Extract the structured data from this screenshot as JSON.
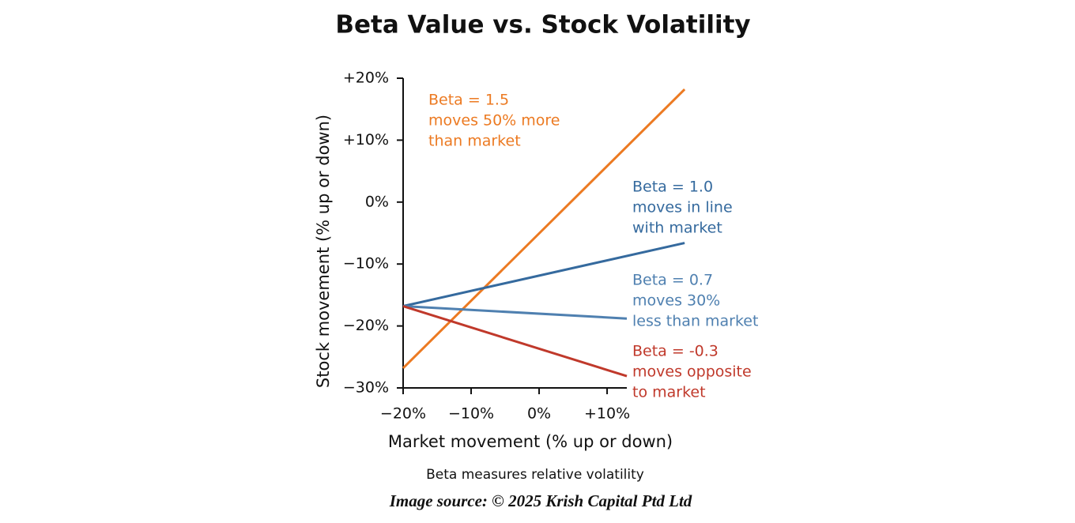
{
  "chart_data": {
    "type": "line",
    "title": "Beta Value vs. Stock Volatility",
    "subtitle": "Beta measures relative volatility",
    "source": "Image source: © 2025 Krish Capital Ptd Ltd",
    "x_label": "Market movement (% up or down)",
    "y_label": "Stock movement (% up or down)",
    "xlim": [
      -20,
      12.9
    ],
    "ylim": [
      -30,
      20
    ],
    "xticks": [
      {
        "value": -20,
        "label": "−20%"
      },
      {
        "value": -10,
        "label": "−10%"
      },
      {
        "value": 0,
        "label": "0%"
      },
      {
        "value": 10,
        "label": "+10%"
      }
    ],
    "yticks": [
      {
        "value": 20,
        "label": "+20%"
      },
      {
        "value": 10,
        "label": "+10%"
      },
      {
        "value": 0,
        "label": "0%"
      },
      {
        "value": -10,
        "label": "−10%"
      },
      {
        "value": -20,
        "label": "−20%"
      },
      {
        "value": -30,
        "label": "−30%"
      }
    ],
    "series": [
      {
        "name": "Beta = 1.5",
        "description": [
          "moves 50% more",
          "than market"
        ],
        "color": "#ec7a22",
        "x": [
          -20,
          21.4
        ],
        "values": [
          -26.8,
          18.2
        ]
      },
      {
        "name": "Beta = 1.0",
        "description": [
          "moves in line",
          "with market"
        ],
        "color": "#356a9e",
        "x": [
          -20,
          21.4
        ],
        "values": [
          -16.8,
          -6.6
        ]
      },
      {
        "name": "Beta = 0.7",
        "description": [
          "moves 30%",
          "less than market"
        ],
        "color": "#4f80b0",
        "x": [
          -20,
          12.9
        ],
        "values": [
          -16.8,
          -18.8
        ]
      },
      {
        "name": "Beta = -0.3",
        "description": [
          "moves opposite",
          "to market"
        ],
        "color": "#c0392b",
        "x": [
          -20,
          12.9
        ],
        "values": [
          -16.8,
          -28.1
        ]
      }
    ]
  }
}
